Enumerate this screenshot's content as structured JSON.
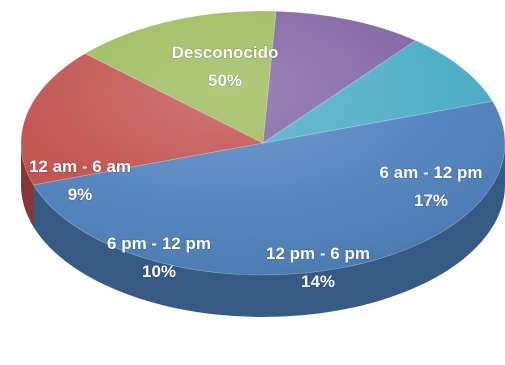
{
  "chart_data": {
    "type": "pie",
    "title": "",
    "slices": [
      {
        "label": "Desconocido",
        "value": 50,
        "value_label": "50%",
        "color": "#4f81bd"
      },
      {
        "label": "6 am - 12 pm",
        "value": 17,
        "value_label": "17%",
        "color": "#c0504d"
      },
      {
        "label": "12 pm - 6 pm",
        "value": 14,
        "value_label": "14%",
        "color": "#9bbb59"
      },
      {
        "label": "6 pm - 12 pm",
        "value": 10,
        "value_label": "10%",
        "color": "#8064a2"
      },
      {
        "label": "12 am - 6 am",
        "value": 9,
        "value_label": "9%",
        "color": "#4bacc6"
      }
    ]
  }
}
